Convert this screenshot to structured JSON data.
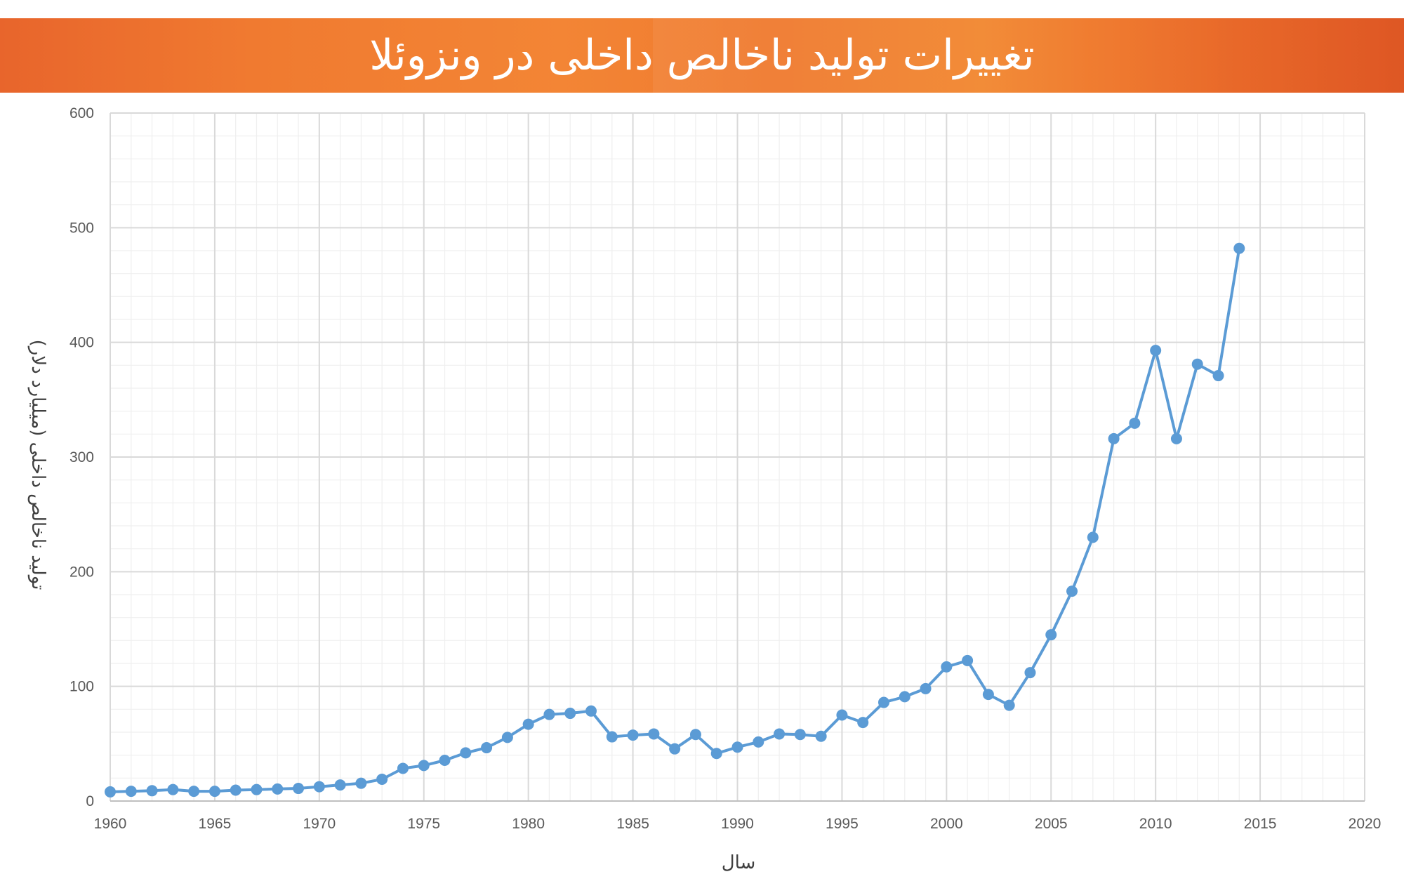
{
  "banner": {
    "title": "تغییرات تولید ناخالص داخلی در ونزوئلا"
  },
  "colors": {
    "banner": "#ee7a30",
    "series": "#5b9bd5",
    "major_grid": "#d9d9d9",
    "minor_grid": "#efefef",
    "tick_text": "#595959"
  },
  "chart_data": {
    "type": "line",
    "title": "تغییرات تولید ناخالص داخلی در ونزوئلا",
    "xlabel": "سال",
    "ylabel": "تولید ناخالص داخلی (میلیارد دلار)",
    "xlim": [
      1960,
      2020
    ],
    "ylim": [
      0,
      600
    ],
    "x_ticks": [
      1960,
      1965,
      1970,
      1975,
      1980,
      1985,
      1990,
      1995,
      2000,
      2005,
      2010,
      2015,
      2020
    ],
    "y_ticks": [
      0,
      100,
      200,
      300,
      400,
      500,
      600
    ],
    "grid": true,
    "legend": "none",
    "series": [
      {
        "x": [
          1960,
          1961,
          1962,
          1963,
          1964,
          1965,
          1966,
          1967,
          1968,
          1969,
          1970,
          1971,
          1972,
          1973,
          1974,
          1975,
          1976,
          1977,
          1978,
          1979,
          1980,
          1981,
          1982,
          1983,
          1984,
          1985,
          1986,
          1987,
          1988,
          1989,
          1990,
          1991,
          1992,
          1993,
          1994,
          1995,
          1996,
          1997,
          1998,
          1999,
          2000,
          2001,
          2002,
          2003,
          2004,
          2005,
          2006,
          2007,
          2008,
          2009,
          2010,
          2011,
          2012,
          2013,
          2014
        ],
        "values": [
          8,
          8.5,
          9,
          10,
          8.5,
          8.5,
          9.5,
          10,
          10.5,
          11,
          12.5,
          14,
          15.5,
          19,
          28.5,
          31,
          35.5,
          42,
          46.5,
          55.5,
          67,
          75.5,
          76.5,
          78.5,
          56,
          57.5,
          58.5,
          45.5,
          58,
          41.5,
          47,
          51.5,
          58.5,
          58,
          56.5,
          75,
          68.5,
          86,
          91,
          98,
          117,
          122.5,
          93,
          83.5,
          112,
          145,
          183,
          230,
          316,
          329.5,
          393,
          316,
          381,
          371,
          482
        ]
      }
    ]
  }
}
